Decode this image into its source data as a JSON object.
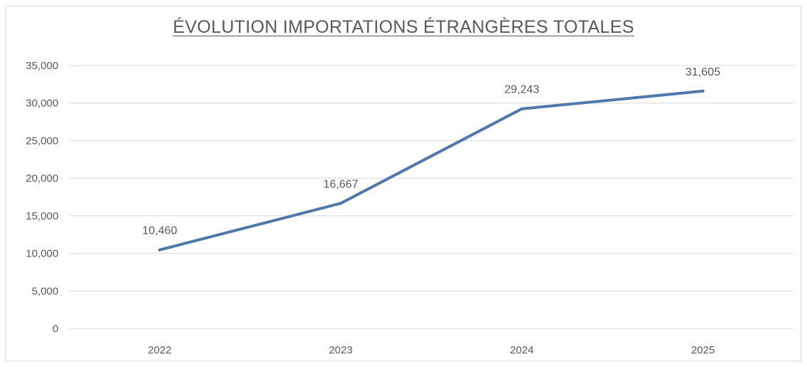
{
  "chart_data": {
    "type": "line",
    "title": "ÉVOLUTION IMPORTATIONS ÉTRANGÈRES TOTALES",
    "categories": [
      "2022",
      "2023",
      "2024",
      "2025"
    ],
    "series": [
      {
        "values": [
          10460,
          16667,
          29243,
          31605
        ],
        "labels": [
          "10,460",
          "16,667",
          "29,243",
          "31,605"
        ]
      }
    ],
    "ylim": [
      0,
      35000
    ],
    "yticks": [
      0,
      5000,
      10000,
      15000,
      20000,
      25000,
      30000,
      35000
    ],
    "ytick_labels": [
      "0",
      "5,000",
      "10,000",
      "15,000",
      "20,000",
      "25,000",
      "30,000",
      "35,000"
    ],
    "xlabel": "",
    "ylabel": "",
    "grid": true,
    "legend": "none",
    "colors": {
      "line": "#4F79AB",
      "grid": "#d9d9d9",
      "text": "#595959"
    }
  }
}
